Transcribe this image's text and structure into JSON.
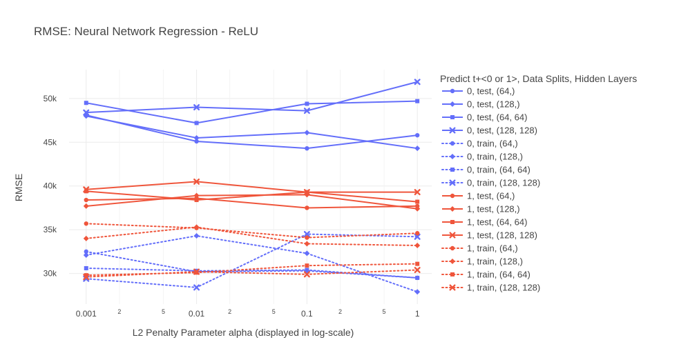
{
  "chart_data": {
    "type": "line",
    "title": "RMSE: Neural Network Regression - ReLU",
    "xlabel": "L2 Penalty Parameter alpha (displayed in log-scale)",
    "ylabel": "RMSE",
    "x_scale": "log",
    "x": [
      0.001,
      0.01,
      0.1,
      1
    ],
    "xlim": [
      0.0007,
      1.35
    ],
    "ylim": [
      26500,
      53300
    ],
    "x_major_ticks": [
      {
        "value": 0.001,
        "label": "0.001"
      },
      {
        "value": 0.01,
        "label": "0.01"
      },
      {
        "value": 0.1,
        "label": "0.1"
      },
      {
        "value": 1,
        "label": "1"
      }
    ],
    "x_minor_ticks": [
      {
        "value": 0.002,
        "label": "2"
      },
      {
        "value": 0.005,
        "label": "5"
      },
      {
        "value": 0.02,
        "label": "2"
      },
      {
        "value": 0.05,
        "label": "5"
      },
      {
        "value": 0.2,
        "label": "2"
      },
      {
        "value": 0.5,
        "label": "5"
      }
    ],
    "y_ticks": [
      {
        "value": 30000,
        "label": "30k"
      },
      {
        "value": 35000,
        "label": "35k"
      },
      {
        "value": 40000,
        "label": "40k"
      },
      {
        "value": 45000,
        "label": "45k"
      },
      {
        "value": 50000,
        "label": "50k"
      }
    ],
    "grid": true,
    "legend": {
      "title": "Predict t+<0 or 1>, Data Splits, Hidden Layers",
      "placement": "right"
    },
    "colors": {
      "0": "#636efa",
      "1": "#ef553b"
    },
    "series": [
      {
        "name": "0, test, (64,)",
        "group": "0",
        "dash": "solid",
        "marker": "circle",
        "values": [
          48100,
          45100,
          44300,
          45800
        ]
      },
      {
        "name": "0, test, (128,)",
        "group": "0",
        "dash": "solid",
        "marker": "diamond",
        "values": [
          48000,
          45500,
          46100,
          44300
        ]
      },
      {
        "name": "0, test, (64, 64)",
        "group": "0",
        "dash": "solid",
        "marker": "square",
        "values": [
          49500,
          47200,
          49400,
          49700
        ]
      },
      {
        "name": "0, test, (128, 128)",
        "group": "0",
        "dash": "solid",
        "marker": "x",
        "values": [
          48400,
          49000,
          48600,
          51900
        ]
      },
      {
        "name": "0, train, (64,)",
        "group": "0",
        "dash": "dot",
        "marker": "circle",
        "values": [
          32500,
          30200,
          30300,
          29500
        ]
      },
      {
        "name": "0, train, (128,)",
        "group": "0",
        "dash": "dot",
        "marker": "diamond",
        "values": [
          32100,
          34300,
          32300,
          27900
        ]
      },
      {
        "name": "0, train, (64, 64)",
        "group": "0",
        "dash": "dot",
        "marker": "square",
        "values": [
          30600,
          30300,
          30400,
          29500
        ]
      },
      {
        "name": "0, train, (128, 128)",
        "group": "0",
        "dash": "dot",
        "marker": "x",
        "values": [
          29400,
          28400,
          34500,
          34200
        ]
      },
      {
        "name": "1, test, (64,)",
        "group": "1",
        "dash": "solid",
        "marker": "circle",
        "values": [
          38400,
          38600,
          37500,
          37700
        ]
      },
      {
        "name": "1, test, (128,)",
        "group": "1",
        "dash": "solid",
        "marker": "diamond",
        "values": [
          37700,
          38900,
          39000,
          37400
        ]
      },
      {
        "name": "1, test, (64, 64)",
        "group": "1",
        "dash": "solid",
        "marker": "square",
        "values": [
          39400,
          38400,
          39300,
          38200
        ]
      },
      {
        "name": "1, test, (128, 128)",
        "group": "1",
        "dash": "solid",
        "marker": "x",
        "values": [
          39600,
          40500,
          39300,
          39300
        ]
      },
      {
        "name": "1, train, (64,)",
        "group": "1",
        "dash": "dot",
        "marker": "circle",
        "values": [
          35700,
          35200,
          34100,
          34600
        ]
      },
      {
        "name": "1, train, (128,)",
        "group": "1",
        "dash": "dot",
        "marker": "diamond",
        "values": [
          34000,
          35300,
          33400,
          33200
        ]
      },
      {
        "name": "1, train, (64, 64)",
        "group": "1",
        "dash": "dot",
        "marker": "square",
        "values": [
          29800,
          30100,
          30900,
          31100
        ]
      },
      {
        "name": "1, train, (128, 128)",
        "group": "1",
        "dash": "dot",
        "marker": "x",
        "values": [
          29600,
          30200,
          29900,
          30400
        ]
      }
    ]
  }
}
